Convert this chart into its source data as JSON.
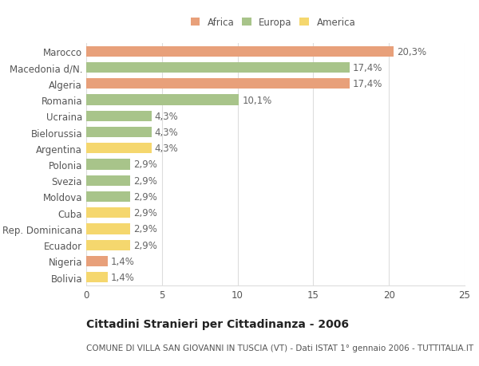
{
  "categories": [
    "Bolivia",
    "Nigeria",
    "Ecuador",
    "Rep. Dominicana",
    "Cuba",
    "Moldova",
    "Svezia",
    "Polonia",
    "Argentina",
    "Bielorussia",
    "Ucraina",
    "Romania",
    "Algeria",
    "Macedonia d/N.",
    "Marocco"
  ],
  "values": [
    1.4,
    1.4,
    2.9,
    2.9,
    2.9,
    2.9,
    2.9,
    2.9,
    4.3,
    4.3,
    4.3,
    10.1,
    17.4,
    17.4,
    20.3
  ],
  "colors": [
    "#f5d76e",
    "#e8a07a",
    "#f5d76e",
    "#f5d76e",
    "#f5d76e",
    "#a8c48a",
    "#a8c48a",
    "#a8c48a",
    "#f5d76e",
    "#a8c48a",
    "#a8c48a",
    "#a8c48a",
    "#e8a07a",
    "#a8c48a",
    "#e8a07a"
  ],
  "labels": [
    "1,4%",
    "1,4%",
    "2,9%",
    "2,9%",
    "2,9%",
    "2,9%",
    "2,9%",
    "2,9%",
    "4,3%",
    "4,3%",
    "4,3%",
    "10,1%",
    "17,4%",
    "17,4%",
    "20,3%"
  ],
  "legend_items": [
    {
      "label": "Africa",
      "color": "#e8a07a"
    },
    {
      "label": "Europa",
      "color": "#a8c48a"
    },
    {
      "label": "America",
      "color": "#f5d76e"
    }
  ],
  "title": "Cittadini Stranieri per Cittadinanza - 2006",
  "subtitle": "COMUNE DI VILLA SAN GIOVANNI IN TUSCIA (VT) - Dati ISTAT 1° gennaio 2006 - TUTTITALIA.IT",
  "xlim": [
    0,
    25
  ],
  "xticks": [
    0,
    5,
    10,
    15,
    20,
    25
  ],
  "background_color": "#ffffff",
  "grid_color": "#dddddd",
  "bar_height": 0.65,
  "label_fontsize": 8.5,
  "tick_fontsize": 8.5,
  "title_fontsize": 10,
  "subtitle_fontsize": 7.5
}
